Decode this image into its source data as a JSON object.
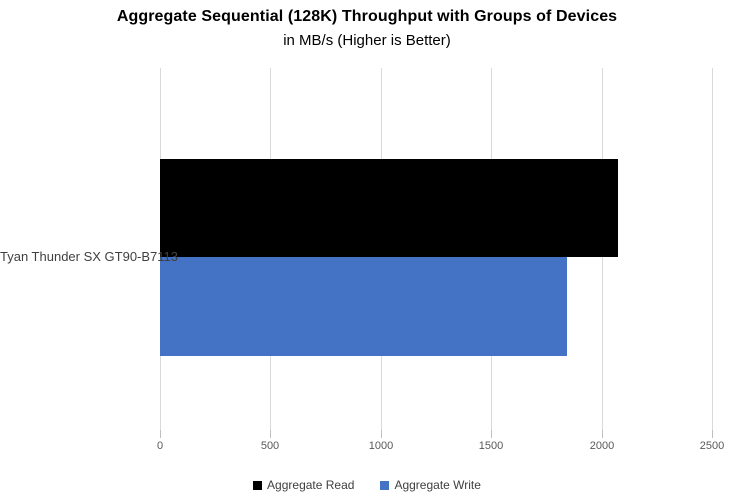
{
  "chart_data": {
    "type": "bar",
    "orientation": "horizontal",
    "title": "Aggregate Sequential (128K) Throughput with Groups of Devices",
    "subtitle": "in MB/s (Higher is Better)",
    "categories": [
      "Tyan Thunder SX GT90-B7113"
    ],
    "series": [
      {
        "name": "Aggregate Read",
        "color": "#000000",
        "values": [
          2075
        ]
      },
      {
        "name": "Aggregate Write",
        "color": "#4472c4",
        "values": [
          1843
        ]
      }
    ],
    "xlabel": "",
    "ylabel": "",
    "xlim": [
      0,
      2500
    ],
    "x_ticks": [
      "0",
      "500",
      "1000",
      "1500",
      "2000",
      "2500"
    ],
    "grid": true,
    "legend_position": "bottom",
    "colors": {
      "gridline": "#d9d9d9",
      "tick_label": "#595959",
      "category_label": "#404040",
      "read_bar": "#000000",
      "write_bar": "#4472c4"
    }
  }
}
